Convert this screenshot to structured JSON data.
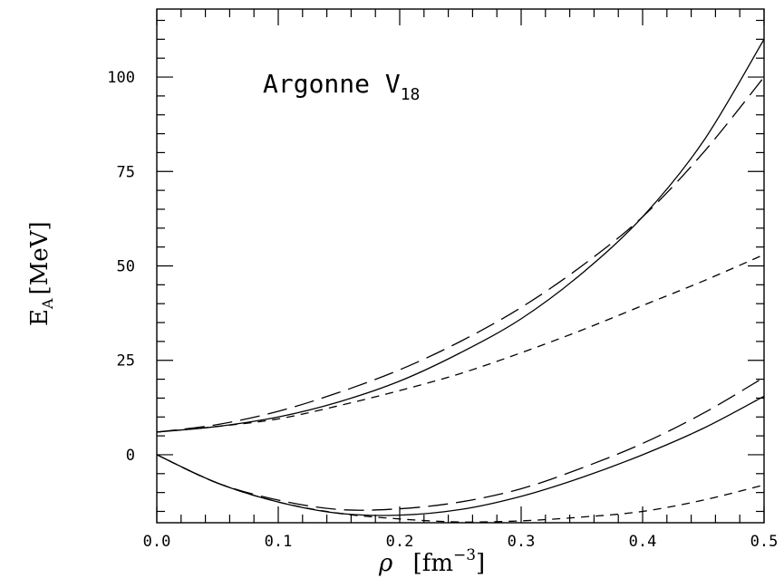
{
  "chart_data": {
    "type": "line",
    "title": "",
    "annotation": {
      "main": "Argonne V",
      "sub": "18"
    },
    "xlabel": {
      "symbol": "ρ",
      "unit_open": "[fm",
      "unit_exp": "−3",
      "unit_close": "]"
    },
    "ylabel": {
      "main": "E",
      "sub": "A",
      "unit": "[MeV]"
    },
    "xlim": [
      0.0,
      0.5
    ],
    "ylim": [
      -18,
      118
    ],
    "xticks": [
      0.0,
      0.1,
      0.2,
      0.3,
      0.4,
      0.5
    ],
    "xtick_labels": [
      "0.0",
      "0.1",
      "0.2",
      "0.3",
      "0.4",
      "0.5"
    ],
    "xminor_step": 0.02,
    "yticks": [
      0,
      25,
      50,
      75,
      100
    ],
    "ytick_labels": [
      "0",
      "25",
      "50",
      "75",
      "100"
    ],
    "yminor_step": 5,
    "grid": false,
    "series": [
      {
        "style": "solid",
        "x": [
          0.0,
          0.05,
          0.1,
          0.15,
          0.2,
          0.25,
          0.3,
          0.35,
          0.4,
          0.45,
          0.5
        ],
        "y": [
          6,
          7.5,
          10,
          14,
          19.5,
          27,
          36,
          48,
          63,
          83,
          110
        ]
      },
      {
        "style": "long-dash",
        "x": [
          0.0,
          0.05,
          0.1,
          0.15,
          0.2,
          0.25,
          0.3,
          0.35,
          0.4,
          0.45,
          0.5
        ],
        "y": [
          6,
          8,
          11.5,
          16.5,
          22.5,
          30,
          39,
          50,
          63,
          80,
          100
        ]
      },
      {
        "style": "short-dash",
        "x": [
          0.0,
          0.05,
          0.1,
          0.15,
          0.2,
          0.25,
          0.3,
          0.35,
          0.4,
          0.45,
          0.5
        ],
        "y": [
          6,
          7.5,
          9.5,
          13,
          17,
          21.5,
          27,
          33,
          39.5,
          46,
          53
        ]
      },
      {
        "style": "solid",
        "x": [
          0.0,
          0.05,
          0.1,
          0.15,
          0.2,
          0.25,
          0.3,
          0.35,
          0.4,
          0.45,
          0.5
        ],
        "y": [
          0,
          -7.5,
          -12.5,
          -15.5,
          -16,
          -14.5,
          -11,
          -6,
          0,
          7,
          15.5
        ]
      },
      {
        "style": "long-dash",
        "x": [
          0.0,
          0.05,
          0.1,
          0.15,
          0.2,
          0.25,
          0.3,
          0.35,
          0.4,
          0.45,
          0.5
        ],
        "y": [
          0,
          -7.5,
          -12,
          -14.5,
          -14.3,
          -12.5,
          -9,
          -3.5,
          3,
          11,
          20.5
        ]
      },
      {
        "style": "short-dash",
        "x": [
          0.0,
          0.05,
          0.1,
          0.15,
          0.2,
          0.25,
          0.3,
          0.35,
          0.4,
          0.45,
          0.5
        ],
        "y": [
          0,
          -7.5,
          -12.5,
          -15.5,
          -17,
          -17.8,
          -17.5,
          -16.5,
          -15,
          -12,
          -8
        ]
      }
    ]
  }
}
